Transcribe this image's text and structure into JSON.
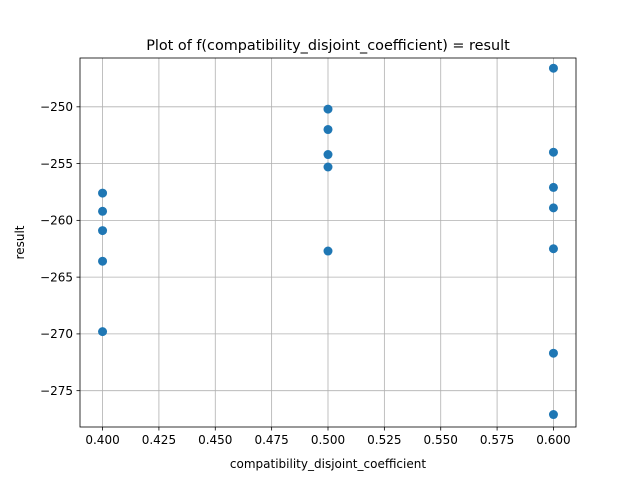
{
  "chart_data": {
    "type": "scatter",
    "title": "Plot of f(compatibility_disjoint_coefficient) = result",
    "xlabel": "compatibility_disjoint_coefficient",
    "ylabel": "result",
    "xlim": [
      0.39,
      0.61
    ],
    "ylim": [
      -278.2,
      -245.7
    ],
    "x_ticks": [
      0.4,
      0.425,
      0.45,
      0.475,
      0.5,
      0.525,
      0.55,
      0.575,
      0.6
    ],
    "x_tick_labels": [
      "0.400",
      "0.425",
      "0.450",
      "0.475",
      "0.500",
      "0.525",
      "0.550",
      "0.575",
      "0.600"
    ],
    "y_ticks": [
      -275,
      -270,
      -265,
      -260,
      -255,
      -250
    ],
    "y_tick_labels": [
      "−275",
      "−270",
      "−265",
      "−260",
      "−255",
      "−250"
    ],
    "grid": true,
    "series": [
      {
        "color": "#1f77b4",
        "points": [
          {
            "x": 0.4,
            "y": -257.6
          },
          {
            "x": 0.4,
            "y": -259.2
          },
          {
            "x": 0.4,
            "y": -260.9
          },
          {
            "x": 0.4,
            "y": -263.6
          },
          {
            "x": 0.4,
            "y": -269.8
          },
          {
            "x": 0.5,
            "y": -250.2
          },
          {
            "x": 0.5,
            "y": -252.0
          },
          {
            "x": 0.5,
            "y": -254.2
          },
          {
            "x": 0.5,
            "y": -255.3
          },
          {
            "x": 0.5,
            "y": -262.7
          },
          {
            "x": 0.6,
            "y": -246.6
          },
          {
            "x": 0.6,
            "y": -254.0
          },
          {
            "x": 0.6,
            "y": -257.1
          },
          {
            "x": 0.6,
            "y": -258.9
          },
          {
            "x": 0.6,
            "y": -262.5
          },
          {
            "x": 0.6,
            "y": -271.7
          },
          {
            "x": 0.6,
            "y": -277.1
          }
        ]
      }
    ]
  }
}
